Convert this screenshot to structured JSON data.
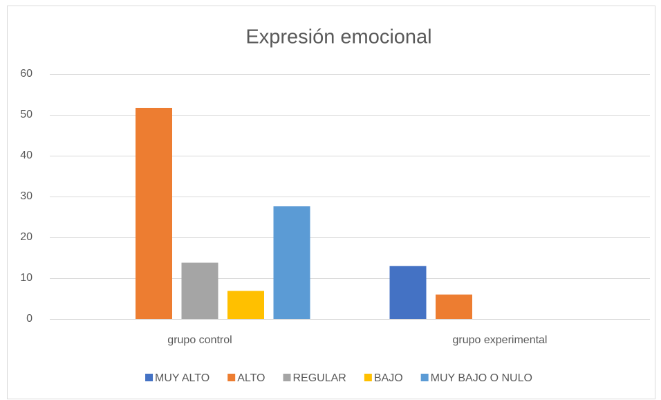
{
  "chart_data": {
    "type": "bar",
    "title": "Expresión emocional",
    "categories": [
      "grupo control",
      "grupo experimental"
    ],
    "series": [
      {
        "name": "MUY ALTO",
        "color": "#4472c4",
        "values": [
          0,
          13
        ]
      },
      {
        "name": "ALTO",
        "color": "#ed7d31",
        "values": [
          51.7,
          6
        ]
      },
      {
        "name": "REGULAR",
        "color": "#a5a5a5",
        "values": [
          13.8,
          0
        ]
      },
      {
        "name": "BAJO",
        "color": "#ffc000",
        "values": [
          6.9,
          0
        ]
      },
      {
        "name": "MUY BAJO O NULO",
        "color": "#5b9bd5",
        "values": [
          27.6,
          0
        ]
      }
    ],
    "ylim": [
      0,
      60
    ],
    "yticks": [
      0,
      10,
      20,
      30,
      40,
      50,
      60
    ],
    "grid": true,
    "legend": "bottom"
  }
}
